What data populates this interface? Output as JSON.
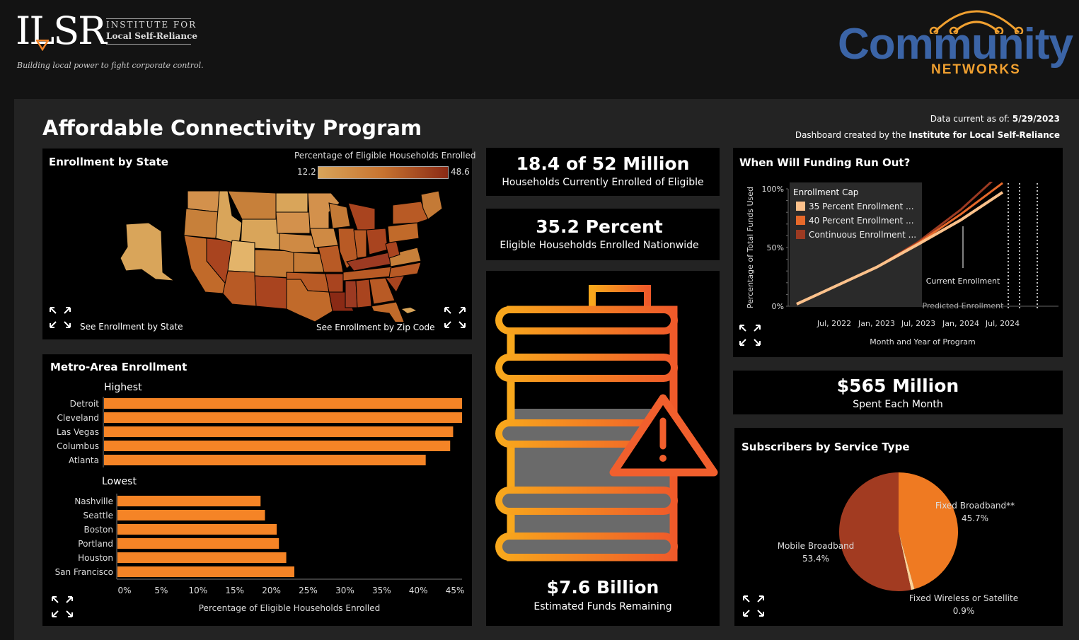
{
  "header": {
    "ilsr_logo_text": "ILSR",
    "ilsr_org_line1": "INSTITUTE FOR",
    "ilsr_org_line2": "Local Self-Reliance",
    "ilsr_tagline": "Building local power to fight corporate control.",
    "cn_logo_main": "Community",
    "cn_logo_sub": "NETWORKS"
  },
  "dashboard": {
    "title": "Affordable Connectivity Program",
    "data_current_label": "Data current as of:",
    "data_current_value": "5/29/2023",
    "created_by_label": "Dashboard created by the",
    "created_by_value": "Institute for Local Self-Reliance"
  },
  "state_map": {
    "title": "Enrollment by State",
    "legend_title": "Percentage of Eligible Households Enrolled",
    "legend_min": "12.2",
    "legend_max": "48.6",
    "link_state": "See Enrollment by State",
    "link_zip": "See Enrollment by Zip Code"
  },
  "kpi": {
    "enrolled_big": "18.4 of 52 Million",
    "enrolled_small": "Households Currently Enrolled of Eligible",
    "percent_big": "35.2 Percent",
    "percent_small": "Eligible Households Enrolled Nationwide",
    "funds_big": "$7.6 Billion",
    "funds_small": "Estimated Funds Remaining",
    "monthly_big": "$565 Million",
    "monthly_small": "Spent Each Month"
  },
  "funding_chart": {
    "title": "When Will Funding Run Out?"
  },
  "metro_chart": {
    "title": "Metro-Area Enrollment"
  },
  "service_chart": {
    "title": "Subscribers by Service Type"
  },
  "colors": {
    "accent": "#f58426",
    "map_low": "#d9a55a",
    "map_high": "#8a2a15",
    "cap35": "#fcc18b",
    "cap40": "#e6692a",
    "continuous": "#9c3a22",
    "mobile": "#a23b21",
    "fixed": "#ef7a22",
    "wireless": "#fbd39a"
  },
  "chart_data": [
    {
      "type": "bar",
      "title": "Metro-Area Enrollment",
      "groups": [
        {
          "label": "Highest",
          "categories": [
            "Detroit",
            "Cleveland",
            "Las Vegas",
            "Columbus",
            "Atlanta"
          ],
          "values": [
            48.4,
            48.4,
            47.2,
            46.8,
            43.5
          ]
        },
        {
          "label": "Lowest",
          "categories": [
            "Nashville",
            "Seattle",
            "Boston",
            "Portland",
            "Houston",
            "San Francisco"
          ],
          "values": [
            19.5,
            20.1,
            21.7,
            22.0,
            23.0,
            24.1
          ]
        }
      ],
      "xlabel": "Percentage of Eligible Households Enrolled",
      "xticks": [
        "0%",
        "5%",
        "10%",
        "15%",
        "20%",
        "25%",
        "30%",
        "35%",
        "40%",
        "45%"
      ],
      "xlim": [
        0,
        48
      ]
    },
    {
      "type": "line",
      "title": "When Will Funding Run Out?",
      "xlabel": "Month and Year of Program",
      "ylabel": "Percentage of Total Funds Used",
      "xticks": [
        "Jul, 2022",
        "Jan, 2023",
        "Jul, 2023",
        "Jan, 2024",
        "Jul, 2024"
      ],
      "yticks": [
        "0%",
        "50%",
        "100%"
      ],
      "legend_title": "Enrollment Cap",
      "annotations": [
        "Current Enrollment",
        "Predicted Enrollment"
      ],
      "series": [
        {
          "name": "35 Percent Enrollment ...",
          "x": [
            "Jan, 2022",
            "Jul, 2022",
            "Jan, 2023",
            "Jul, 2023",
            "Jan, 2024",
            "Jul, 2024"
          ],
          "values": [
            0,
            15,
            32,
            52,
            73,
            97
          ]
        },
        {
          "name": "40 Percent Enrollment ...",
          "x": [
            "Jan, 2022",
            "Jul, 2022",
            "Jan, 2023",
            "Jul, 2023",
            "Jan, 2024",
            "Jul, 2024"
          ],
          "values": [
            0,
            15,
            32,
            53,
            78,
            105
          ]
        },
        {
          "name": "Continuous Enrollment ...",
          "x": [
            "Jan, 2022",
            "Jul, 2022",
            "Jan, 2023",
            "Jul, 2023",
            "Jan, 2024",
            "Jul, 2024"
          ],
          "values": [
            0,
            15,
            32,
            54,
            82,
            115
          ]
        }
      ]
    },
    {
      "type": "pie",
      "title": "Subscribers by Service Type",
      "slices": [
        {
          "label": "Fixed Broadband**",
          "pct_label": "45.7%",
          "value": 45.7
        },
        {
          "label": "Fixed Wireless or Satellite",
          "pct_label": "0.9%",
          "value": 0.9
        },
        {
          "label": "Mobile Broadband",
          "pct_label": "53.4%",
          "value": 53.4
        }
      ]
    }
  ]
}
